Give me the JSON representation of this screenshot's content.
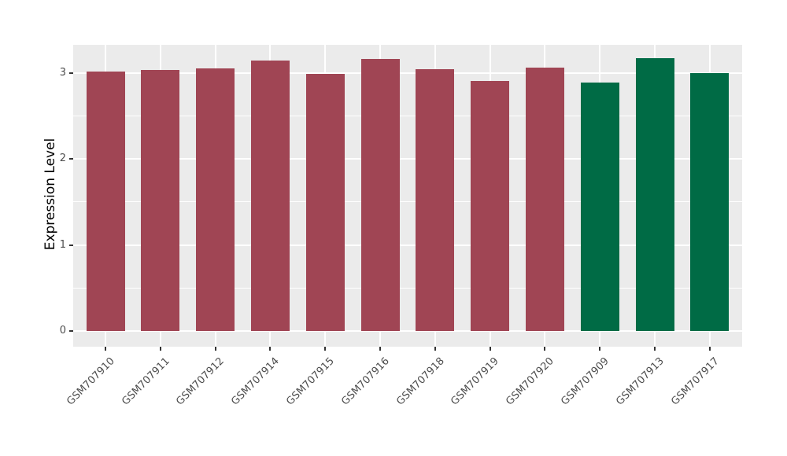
{
  "chart_data": {
    "type": "bar",
    "title": "",
    "xlabel": "",
    "ylabel": "Expression Level",
    "categories": [
      "GSM707910",
      "GSM707911",
      "GSM707912",
      "GSM707914",
      "GSM707915",
      "GSM707916",
      "GSM707918",
      "GSM707919",
      "GSM707920",
      "GSM707909",
      "GSM707913",
      "GSM707917"
    ],
    "values": [
      3.01,
      3.03,
      3.05,
      3.14,
      2.99,
      3.16,
      3.04,
      2.9,
      3.06,
      2.89,
      3.17,
      3.0
    ],
    "bar_colors": [
      "#A04554",
      "#A04554",
      "#A04554",
      "#A04554",
      "#A04554",
      "#A04554",
      "#A04554",
      "#A04554",
      "#A04554",
      "#006B45",
      "#006B45",
      "#006B45"
    ],
    "group_colors": {
      "red_group": "#A04554",
      "green_group": "#006B45"
    },
    "ylim": [
      0,
      3.32
    ],
    "yticks": [
      0,
      1,
      2,
      3
    ],
    "ytick_labels": [
      "0",
      "1",
      "2",
      "3"
    ],
    "minor_yticks": [
      0.5,
      1.5,
      2.5
    ],
    "grid": "on",
    "legend_position": "none",
    "panel_background": "#EBEBEB",
    "grid_color": "#FFFFFF",
    "axis_text_color": "#4D4D4D",
    "tick_mark_color": "#333333"
  }
}
